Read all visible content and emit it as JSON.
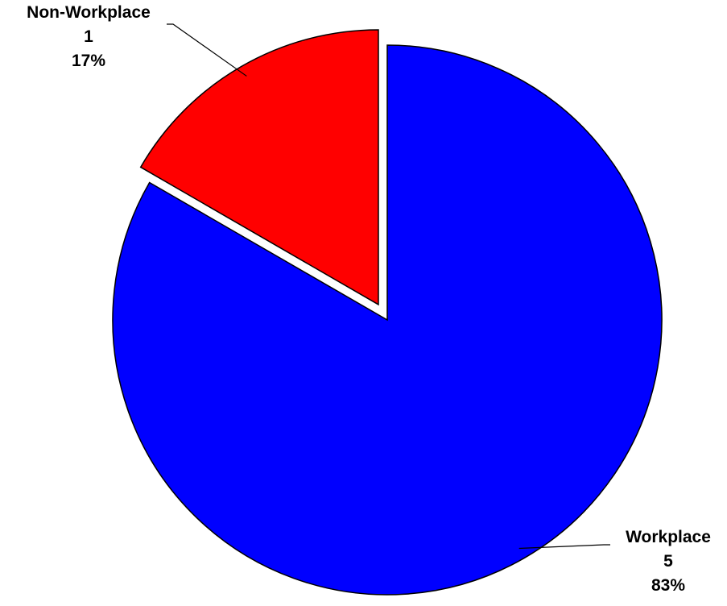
{
  "chart_data": {
    "type": "pie",
    "title": "",
    "slices": [
      {
        "label": "Workplace",
        "value": 5,
        "percent": "83%",
        "color": "#0000ff",
        "exploded": false
      },
      {
        "label": "Non-Workplace",
        "value": 1,
        "percent": "17%",
        "color": "#ff0000",
        "exploded": true
      }
    ],
    "start_angle_deg": 0,
    "direction": "clockwise",
    "legend": "none",
    "data_labels": "category, value, percent"
  }
}
